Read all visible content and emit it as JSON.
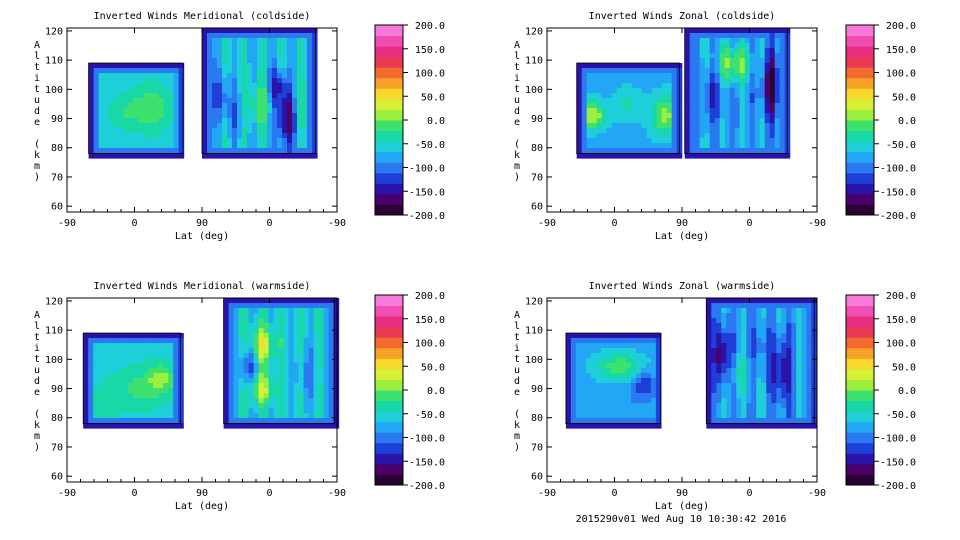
{
  "footer": "2015290v01 Wed Aug 10 10:30:42 2016",
  "colorbar": {
    "ticks": [
      "200.0",
      "150.0",
      "100.0",
      "50.0",
      "0.0",
      "-50.0",
      "-100.0",
      "-150.0",
      "-200.0"
    ],
    "range": [
      -200,
      200
    ],
    "colors": [
      "#2b0033",
      "#4b006a",
      "#2a13a8",
      "#1f3fd9",
      "#2a79f0",
      "#23a7f5",
      "#1ecfd9",
      "#19d8a8",
      "#3ee06e",
      "#9bf03f",
      "#d6f035",
      "#f7d92b",
      "#f6a12a",
      "#f26a2d",
      "#e83a52",
      "#e82d7f",
      "#f04eb5",
      "#f57ad9"
    ]
  },
  "chart_data": [
    {
      "type": "heatmap",
      "title": "Inverted Winds Meridional (coldside)",
      "xlabel": "Lat (deg)",
      "ylabel": "Altitude (km)",
      "x_tick_labels": [
        "-90",
        "0",
        "90",
        "0",
        "-90"
      ],
      "y_ticks": [
        60,
        70,
        80,
        90,
        100,
        110,
        120
      ],
      "ylim": [
        58,
        121
      ],
      "colorbar_range": [
        -200,
        200
      ]
    },
    {
      "type": "heatmap",
      "title": "Inverted Winds Zonal (coldside)",
      "xlabel": "Lat (deg)",
      "ylabel": "Altitude (km)",
      "x_tick_labels": [
        "-90",
        "0",
        "90",
        "0",
        "-90"
      ],
      "y_ticks": [
        60,
        70,
        80,
        90,
        100,
        110,
        120
      ],
      "ylim": [
        58,
        121
      ],
      "colorbar_range": [
        -200,
        200
      ]
    },
    {
      "type": "heatmap",
      "title": "Inverted Winds Meridional (warmside)",
      "xlabel": "Lat (deg)",
      "ylabel": "Altitude (km)",
      "x_tick_labels": [
        "-90",
        "0",
        "90",
        "0",
        "-90"
      ],
      "y_ticks": [
        60,
        70,
        80,
        90,
        100,
        110,
        120
      ],
      "ylim": [
        58,
        121
      ],
      "colorbar_range": [
        -200,
        200
      ]
    },
    {
      "type": "heatmap",
      "title": "Inverted Winds Zonal (warmside)",
      "xlabel": "Lat (deg)",
      "ylabel": "Altitude (km)",
      "x_tick_labels": [
        "-90",
        "0",
        "90",
        "0",
        "-90"
      ],
      "y_ticks": [
        60,
        70,
        80,
        90,
        100,
        110,
        120
      ],
      "ylim": [
        58,
        121
      ],
      "colorbar_range": [
        -200,
        200
      ]
    }
  ]
}
